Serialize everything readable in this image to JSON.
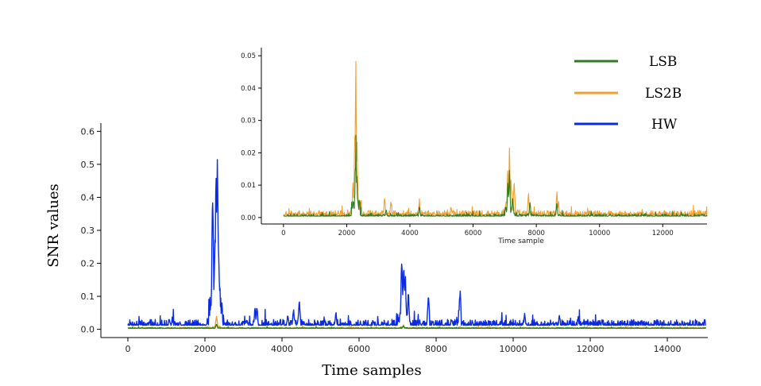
{
  "chart_data": [
    {
      "type": "line",
      "xlabel": "Time samples",
      "ylabel": "SNR values",
      "xlim": [
        -700,
        15050
      ],
      "ylim": [
        -0.025,
        0.625
      ],
      "xticks": [
        0,
        2000,
        4000,
        6000,
        8000,
        10000,
        12000,
        14000
      ],
      "yticks": [
        0.0,
        0.1,
        0.2,
        0.3,
        0.4,
        0.5,
        0.6
      ],
      "xtick_labels": [
        "0",
        "2000",
        "4000",
        "6000",
        "8000",
        "10000",
        "12000",
        "14000"
      ],
      "ytick_labels": [
        "0.0",
        "0.1",
        "0.2",
        "0.3",
        "0.4",
        "0.5",
        "0.6"
      ],
      "grid": false,
      "series": [
        {
          "name": "HW",
          "color": "#0a2be0",
          "baseline": 0.012,
          "noise": 0.018,
          "peaks": [
            [
              2200,
              0.465
            ],
            [
              2260,
              0.3
            ],
            [
              2290,
              0.52
            ],
            [
              2320,
              0.615
            ],
            [
              2345,
              0.34
            ],
            [
              2370,
              0.17
            ],
            [
              3300,
              0.075
            ],
            [
              3350,
              0.08
            ],
            [
              4150,
              0.05
            ],
            [
              4300,
              0.07
            ],
            [
              4450,
              0.105
            ],
            [
              5400,
              0.06
            ],
            [
              7110,
              0.265
            ],
            [
              7160,
              0.25
            ],
            [
              7200,
              0.19
            ],
            [
              7280,
              0.13
            ],
            [
              7800,
              0.128
            ],
            [
              8620,
              0.138
            ],
            [
              10300,
              0.055
            ],
            [
              11200,
              0.05
            ]
          ],
          "seed": 7
        },
        {
          "name": "LS2B",
          "color": "#f0a030",
          "baseline": 0.003,
          "noise": 0.003,
          "peaks": [
            [
              2300,
              0.045
            ],
            [
              7150,
              0.015
            ],
            [
              8620,
              0.01
            ]
          ],
          "seed": 11
        },
        {
          "name": "LSB",
          "color": "#2e7d23",
          "baseline": 0.003,
          "noise": 0.002,
          "peaks": [
            [
              2300,
              0.02
            ],
            [
              7150,
              0.012
            ]
          ],
          "seed": 13
        }
      ]
    },
    {
      "type": "line",
      "xlabel": "Time sample",
      "ylabel": "",
      "xlim": [
        -700,
        13400
      ],
      "ylim": [
        -0.002,
        0.0525
      ],
      "xticks": [
        0,
        2000,
        4000,
        6000,
        8000,
        10000,
        12000
      ],
      "yticks": [
        0.0,
        0.01,
        0.02,
        0.03,
        0.04,
        0.05
      ],
      "xtick_labels": [
        "0",
        "2000",
        "4000",
        "6000",
        "8000",
        "10000",
        "12000"
      ],
      "ytick_labels": [
        "0.00",
        "0.01",
        "0.02",
        "0.03",
        "0.04",
        "0.05"
      ],
      "grid": false,
      "series": [
        {
          "name": "LS2B",
          "color": "#f0a030",
          "baseline": 0.0008,
          "noise": 0.0014,
          "peaks": [
            [
              2200,
              0.008
            ],
            [
              2260,
              0.032
            ],
            [
              2290,
              0.051
            ],
            [
              2330,
              0.025
            ],
            [
              3200,
              0.0075
            ],
            [
              3400,
              0.006
            ],
            [
              4300,
              0.0065
            ],
            [
              5300,
              0.004
            ],
            [
              7100,
              0.019
            ],
            [
              7150,
              0.0225
            ],
            [
              7200,
              0.015
            ],
            [
              7300,
              0.0135
            ],
            [
              7750,
              0.009
            ],
            [
              8650,
              0.009
            ],
            [
              8700,
              0.006
            ]
          ],
          "seed": 21
        },
        {
          "name": "LSB",
          "color": "#2e7d23",
          "baseline": 0.0004,
          "noise": 0.0007,
          "peaks": [
            [
              2200,
              0.006
            ],
            [
              2290,
              0.026
            ],
            [
              2320,
              0.015
            ],
            [
              3250,
              0.003
            ],
            [
              4300,
              0.004
            ],
            [
              7100,
              0.0125
            ],
            [
              7150,
              0.015
            ],
            [
              7250,
              0.007
            ],
            [
              7800,
              0.0055
            ],
            [
              8650,
              0.005
            ]
          ],
          "seed": 23
        }
      ]
    }
  ],
  "legend": [
    {
      "name": "LSB",
      "color": "#2e7d23"
    },
    {
      "name": "LS2B",
      "color": "#f0a030"
    },
    {
      "name": "HW",
      "color": "#0a2be0"
    }
  ]
}
